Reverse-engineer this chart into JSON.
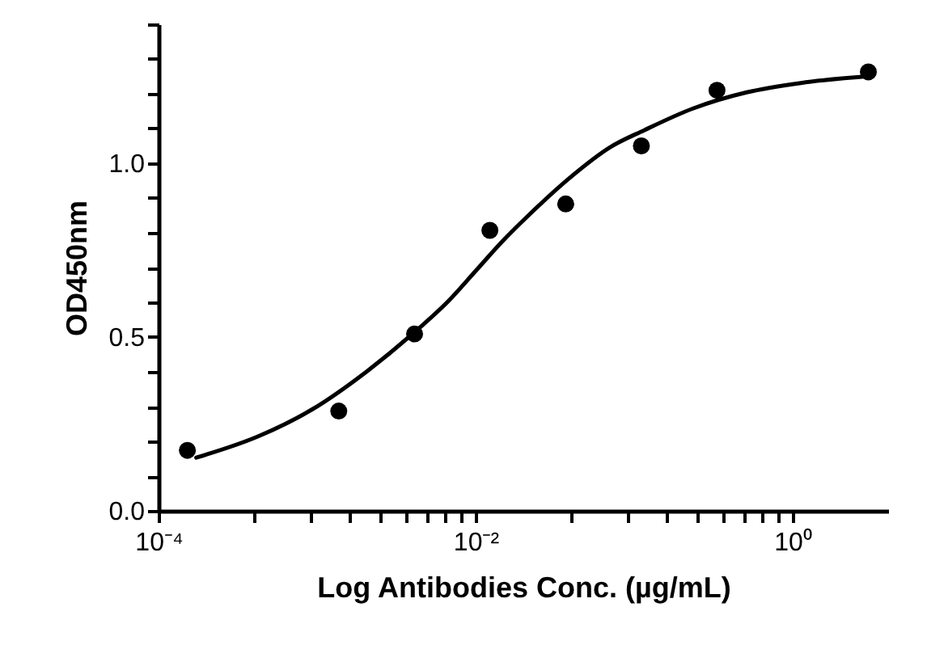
{
  "chart_data": {
    "type": "scatter",
    "xlabel": "Log Antibodies Conc. (µg/mL)",
    "ylabel": "OD450nm",
    "log": "x",
    "marker": "circle",
    "line_style": "solid",
    "xlim": [
      0.0001,
      4
    ],
    "ylim": [
      0,
      1.4
    ],
    "xticks": [
      {
        "value": 0.0001,
        "label": "10⁻⁴"
      },
      {
        "value": 0.0004,
        "label": null
      },
      {
        "value": 0.0009,
        "label": null
      },
      {
        "value": 0.0016,
        "label": null
      },
      {
        "value": 0.0025,
        "label": null
      },
      {
        "value": 0.0036,
        "label": null
      },
      {
        "value": 0.0049,
        "label": null
      },
      {
        "value": 0.0064,
        "label": null
      },
      {
        "value": 0.0081,
        "label": null
      },
      {
        "value": 0.01,
        "label": "10⁻²"
      },
      {
        "value": 0.04,
        "label": null
      },
      {
        "value": 0.09,
        "label": null
      },
      {
        "value": 0.16,
        "label": null
      },
      {
        "value": 0.25,
        "label": null
      },
      {
        "value": 0.36,
        "label": null
      },
      {
        "value": 0.49,
        "label": null
      },
      {
        "value": 0.64,
        "label": null
      },
      {
        "value": 0.81,
        "label": null
      },
      {
        "value": 1,
        "label": "10⁰"
      }
    ],
    "yticks": [
      {
        "value": 0,
        "label": "0.0"
      },
      {
        "value": 0.1,
        "label": null
      },
      {
        "value": 0.2,
        "label": null
      },
      {
        "value": 0.3,
        "label": null
      },
      {
        "value": 0.4,
        "label": null
      },
      {
        "value": 0.5,
        "label": "0.5"
      },
      {
        "value": 0.6,
        "label": null
      },
      {
        "value": 0.7,
        "label": null
      },
      {
        "value": 0.8,
        "label": null
      },
      {
        "value": 0.9,
        "label": null
      },
      {
        "value": 1,
        "label": "1.0"
      },
      {
        "value": 1.1,
        "label": null
      },
      {
        "value": 1.2,
        "label": null
      },
      {
        "value": 1.3,
        "label": null
      },
      {
        "value": 1.4,
        "label": null
      }
    ],
    "series": [
      {
        "color": "#000000",
        "x": [
          0.000152,
          0.00137,
          0.00412,
          0.0123,
          0.037,
          0.111,
          0.333,
          3
        ],
        "values": [
          0.174,
          0.287,
          0.509,
          0.807,
          0.883,
          1.05,
          1.21,
          1.263
        ]
      },
      {
        "type": "line",
        "marker": "none",
        "color": "#000000",
        "x": [
          0.000173,
          0.000429,
          0.00094,
          0.00207,
          0.00424,
          0.00675,
          0.01,
          0.0148,
          0.022,
          0.0385,
          0.0716,
          0.1156,
          0.233,
          0.512,
          1.125,
          3.13
        ],
        "values": [
          0.153,
          0.215,
          0.293,
          0.402,
          0.519,
          0.604,
          0.69,
          0.776,
          0.854,
          0.955,
          1.048,
          1.095,
          1.157,
          1.204,
          1.231,
          1.251
        ]
      }
    ]
  }
}
